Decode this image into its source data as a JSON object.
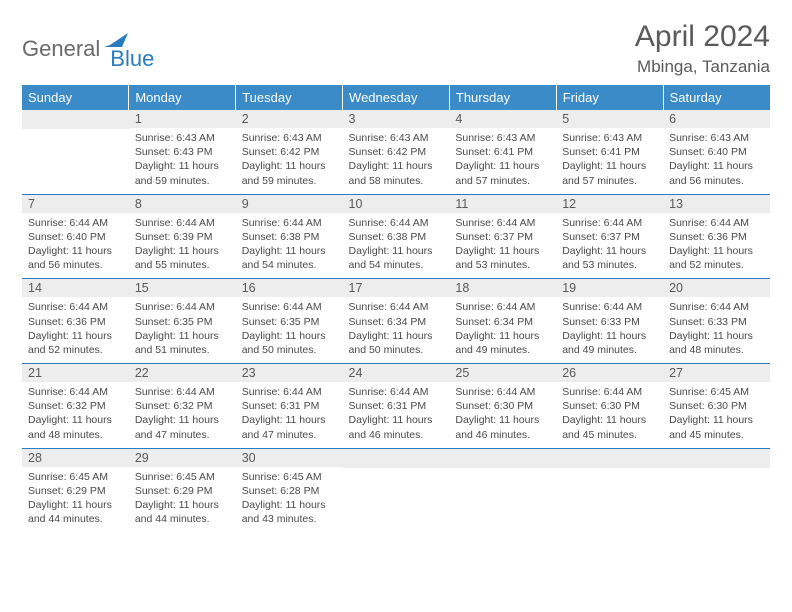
{
  "brand": {
    "text_general": "General",
    "text_blue": "Blue",
    "shape_color": "#2a7bbf"
  },
  "title": "April 2024",
  "location": "Mbinga, Tanzania",
  "colors": {
    "header_bg": "#3b8bc9",
    "header_text": "#ffffff",
    "daynum_bg": "#ededed",
    "row_border": "#2a7bbf",
    "body_text": "#4a4a4a"
  },
  "weekdays": [
    "Sunday",
    "Monday",
    "Tuesday",
    "Wednesday",
    "Thursday",
    "Friday",
    "Saturday"
  ],
  "weeks": [
    [
      null,
      {
        "n": "1",
        "sr": "6:43 AM",
        "ss": "6:43 PM",
        "dl": "11 hours and 59 minutes."
      },
      {
        "n": "2",
        "sr": "6:43 AM",
        "ss": "6:42 PM",
        "dl": "11 hours and 59 minutes."
      },
      {
        "n": "3",
        "sr": "6:43 AM",
        "ss": "6:42 PM",
        "dl": "11 hours and 58 minutes."
      },
      {
        "n": "4",
        "sr": "6:43 AM",
        "ss": "6:41 PM",
        "dl": "11 hours and 57 minutes."
      },
      {
        "n": "5",
        "sr": "6:43 AM",
        "ss": "6:41 PM",
        "dl": "11 hours and 57 minutes."
      },
      {
        "n": "6",
        "sr": "6:43 AM",
        "ss": "6:40 PM",
        "dl": "11 hours and 56 minutes."
      }
    ],
    [
      {
        "n": "7",
        "sr": "6:44 AM",
        "ss": "6:40 PM",
        "dl": "11 hours and 56 minutes."
      },
      {
        "n": "8",
        "sr": "6:44 AM",
        "ss": "6:39 PM",
        "dl": "11 hours and 55 minutes."
      },
      {
        "n": "9",
        "sr": "6:44 AM",
        "ss": "6:38 PM",
        "dl": "11 hours and 54 minutes."
      },
      {
        "n": "10",
        "sr": "6:44 AM",
        "ss": "6:38 PM",
        "dl": "11 hours and 54 minutes."
      },
      {
        "n": "11",
        "sr": "6:44 AM",
        "ss": "6:37 PM",
        "dl": "11 hours and 53 minutes."
      },
      {
        "n": "12",
        "sr": "6:44 AM",
        "ss": "6:37 PM",
        "dl": "11 hours and 53 minutes."
      },
      {
        "n": "13",
        "sr": "6:44 AM",
        "ss": "6:36 PM",
        "dl": "11 hours and 52 minutes."
      }
    ],
    [
      {
        "n": "14",
        "sr": "6:44 AM",
        "ss": "6:36 PM",
        "dl": "11 hours and 52 minutes."
      },
      {
        "n": "15",
        "sr": "6:44 AM",
        "ss": "6:35 PM",
        "dl": "11 hours and 51 minutes."
      },
      {
        "n": "16",
        "sr": "6:44 AM",
        "ss": "6:35 PM",
        "dl": "11 hours and 50 minutes."
      },
      {
        "n": "17",
        "sr": "6:44 AM",
        "ss": "6:34 PM",
        "dl": "11 hours and 50 minutes."
      },
      {
        "n": "18",
        "sr": "6:44 AM",
        "ss": "6:34 PM",
        "dl": "11 hours and 49 minutes."
      },
      {
        "n": "19",
        "sr": "6:44 AM",
        "ss": "6:33 PM",
        "dl": "11 hours and 49 minutes."
      },
      {
        "n": "20",
        "sr": "6:44 AM",
        "ss": "6:33 PM",
        "dl": "11 hours and 48 minutes."
      }
    ],
    [
      {
        "n": "21",
        "sr": "6:44 AM",
        "ss": "6:32 PM",
        "dl": "11 hours and 48 minutes."
      },
      {
        "n": "22",
        "sr": "6:44 AM",
        "ss": "6:32 PM",
        "dl": "11 hours and 47 minutes."
      },
      {
        "n": "23",
        "sr": "6:44 AM",
        "ss": "6:31 PM",
        "dl": "11 hours and 47 minutes."
      },
      {
        "n": "24",
        "sr": "6:44 AM",
        "ss": "6:31 PM",
        "dl": "11 hours and 46 minutes."
      },
      {
        "n": "25",
        "sr": "6:44 AM",
        "ss": "6:30 PM",
        "dl": "11 hours and 46 minutes."
      },
      {
        "n": "26",
        "sr": "6:44 AM",
        "ss": "6:30 PM",
        "dl": "11 hours and 45 minutes."
      },
      {
        "n": "27",
        "sr": "6:45 AM",
        "ss": "6:30 PM",
        "dl": "11 hours and 45 minutes."
      }
    ],
    [
      {
        "n": "28",
        "sr": "6:45 AM",
        "ss": "6:29 PM",
        "dl": "11 hours and 44 minutes."
      },
      {
        "n": "29",
        "sr": "6:45 AM",
        "ss": "6:29 PM",
        "dl": "11 hours and 44 minutes."
      },
      {
        "n": "30",
        "sr": "6:45 AM",
        "ss": "6:28 PM",
        "dl": "11 hours and 43 minutes."
      },
      null,
      null,
      null,
      null
    ]
  ],
  "labels": {
    "sunrise": "Sunrise:",
    "sunset": "Sunset:",
    "daylight": "Daylight:"
  }
}
